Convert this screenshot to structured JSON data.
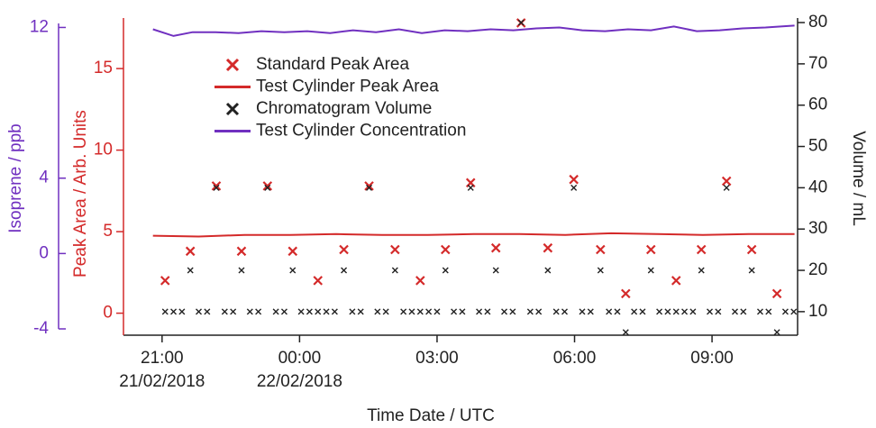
{
  "chart_data": {
    "type": "line",
    "xlabel": "Time Date / UTC",
    "ylabel": "Peak Area / Arb. Units",
    "y2label": "Volume / mL",
    "y3label": "Isoprene / ppb",
    "xlim": [
      "2018-02-21T20:13",
      "2018-02-22T10:52"
    ],
    "xticks": [
      {
        "value": "2018-02-21T21:00",
        "label": "21:00"
      },
      {
        "value": "2018-02-22T00:00",
        "label": "00:00"
      },
      {
        "value": "2018-02-22T03:00",
        "label": "03:00"
      },
      {
        "value": "2018-02-22T06:00",
        "label": "06:00"
      },
      {
        "value": "2018-02-22T09:00",
        "label": "09:00"
      }
    ],
    "x_date_labels": [
      {
        "value": "2018-02-21T21:00",
        "label": "21/02/2018"
      },
      {
        "value": "2018-02-22T00:00",
        "label": "22/02/2018"
      }
    ],
    "ylim": [
      -1.35,
      18.1
    ],
    "yticks": [
      0,
      5,
      10,
      15
    ],
    "ycolor": "#d42a2a",
    "y2lim": [
      4.3,
      81.1
    ],
    "y2ticks": [
      10,
      20,
      30,
      40,
      50,
      60,
      70,
      80
    ],
    "y2color": "#222222",
    "y3lim": [
      -4,
      12.5
    ],
    "y3ticks": [
      -4,
      0,
      4,
      12
    ],
    "y3color": "#7030c0",
    "series": [
      {
        "name": "Standard Peak Area",
        "style": "x",
        "axis": "y",
        "color": "#d42a2a",
        "x": [
          "2018-02-21T21:04",
          "2018-02-21T21:37",
          "2018-02-21T22:11",
          "2018-02-21T22:44",
          "2018-02-21T23:18",
          "2018-02-21T23:51",
          "2018-02-22T00:24",
          "2018-02-22T00:58",
          "2018-02-22T01:31",
          "2018-02-22T02:05",
          "2018-02-22T02:38",
          "2018-02-22T03:11",
          "2018-02-22T03:44",
          "2018-02-22T04:17",
          "2018-02-22T04:50",
          "2018-02-22T05:25",
          "2018-02-22T05:59",
          "2018-02-22T06:34",
          "2018-02-22T07:07",
          "2018-02-22T07:40",
          "2018-02-22T08:13",
          "2018-02-22T08:46",
          "2018-02-22T09:19",
          "2018-02-22T09:52",
          "2018-02-22T10:25"
        ],
        "values": [
          2.0,
          3.8,
          7.8,
          3.8,
          7.8,
          3.8,
          2.0,
          3.9,
          7.8,
          3.9,
          2.0,
          3.9,
          8.0,
          4.0,
          17.8,
          4.0,
          8.2,
          3.9,
          1.2,
          3.9,
          2.0,
          3.9,
          8.1,
          3.9,
          1.2
        ]
      },
      {
        "name": "Test Cylinder Peak Area",
        "style": "line",
        "axis": "y",
        "color": "#d42a2a",
        "x": [
          "2018-02-21T20:48",
          "2018-02-21T21:48",
          "2018-02-21T22:48",
          "2018-02-21T23:48",
          "2018-02-22T00:48",
          "2018-02-22T01:48",
          "2018-02-22T02:48",
          "2018-02-22T03:48",
          "2018-02-22T04:48",
          "2018-02-22T05:48",
          "2018-02-22T06:48",
          "2018-02-22T07:48",
          "2018-02-22T08:48",
          "2018-02-22T09:48",
          "2018-02-22T10:48"
        ],
        "values": [
          4.75,
          4.7,
          4.8,
          4.8,
          4.85,
          4.8,
          4.8,
          4.85,
          4.85,
          4.8,
          4.9,
          4.85,
          4.8,
          4.85,
          4.85
        ]
      },
      {
        "name": "Chromatogram Volume",
        "style": "x",
        "axis": "y2",
        "color": "#222222",
        "x": [
          "2018-02-21T21:04",
          "2018-02-21T21:15",
          "2018-02-21T21:26",
          "2018-02-21T21:37",
          "2018-02-21T21:48",
          "2018-02-21T21:59",
          "2018-02-21T22:11",
          "2018-02-21T22:22",
          "2018-02-21T22:33",
          "2018-02-21T22:44",
          "2018-02-21T22:55",
          "2018-02-21T23:06",
          "2018-02-21T23:18",
          "2018-02-21T23:29",
          "2018-02-21T23:40",
          "2018-02-21T23:51",
          "2018-02-22T00:02",
          "2018-02-22T00:13",
          "2018-02-22T00:24",
          "2018-02-22T00:35",
          "2018-02-22T00:46",
          "2018-02-22T00:58",
          "2018-02-22T01:09",
          "2018-02-22T01:20",
          "2018-02-22T01:31",
          "2018-02-22T01:42",
          "2018-02-22T01:53",
          "2018-02-22T02:05",
          "2018-02-22T02:16",
          "2018-02-22T02:27",
          "2018-02-22T02:38",
          "2018-02-22T02:49",
          "2018-02-22T03:00",
          "2018-02-22T03:11",
          "2018-02-22T03:22",
          "2018-02-22T03:33",
          "2018-02-22T03:44",
          "2018-02-22T03:55",
          "2018-02-22T04:06",
          "2018-02-22T04:17",
          "2018-02-22T04:28",
          "2018-02-22T04:39",
          "2018-02-22T04:50",
          "2018-02-22T05:02",
          "2018-02-22T05:13",
          "2018-02-22T05:25",
          "2018-02-22T05:36",
          "2018-02-22T05:47",
          "2018-02-22T05:59",
          "2018-02-22T06:10",
          "2018-02-22T06:21",
          "2018-02-22T06:34",
          "2018-02-22T06:45",
          "2018-02-22T06:56",
          "2018-02-22T07:07",
          "2018-02-22T07:18",
          "2018-02-22T07:29",
          "2018-02-22T07:40",
          "2018-02-22T07:51",
          "2018-02-22T08:02",
          "2018-02-22T08:13",
          "2018-02-22T08:24",
          "2018-02-22T08:35",
          "2018-02-22T08:46",
          "2018-02-22T08:57",
          "2018-02-22T09:08",
          "2018-02-22T09:19",
          "2018-02-22T09:30",
          "2018-02-22T09:41",
          "2018-02-22T09:52",
          "2018-02-22T10:03",
          "2018-02-22T10:14",
          "2018-02-22T10:25",
          "2018-02-22T10:36",
          "2018-02-22T10:47"
        ],
        "values": [
          10,
          10,
          10,
          20,
          10,
          10,
          40,
          10,
          10,
          20,
          10,
          10,
          40,
          10,
          10,
          20,
          10,
          10,
          10,
          10,
          10,
          20,
          10,
          10,
          40,
          10,
          10,
          20,
          10,
          10,
          10,
          10,
          10,
          20,
          10,
          10,
          40,
          10,
          10,
          20,
          10,
          10,
          80,
          10,
          10,
          20,
          10,
          10,
          40,
          10,
          10,
          20,
          10,
          10,
          5,
          10,
          10,
          20,
          10,
          10,
          10,
          10,
          10,
          20,
          10,
          10,
          40,
          10,
          10,
          20,
          10,
          10,
          5,
          10,
          10
        ]
      },
      {
        "name": "Test Cylinder Concentration",
        "style": "line",
        "axis": "y3",
        "color": "#7030c0",
        "x": [
          "2018-02-21T20:48",
          "2018-02-21T21:15",
          "2018-02-21T21:40",
          "2018-02-21T22:10",
          "2018-02-21T22:40",
          "2018-02-21T23:10",
          "2018-02-21T23:40",
          "2018-02-22T00:10",
          "2018-02-22T00:40",
          "2018-02-22T01:10",
          "2018-02-22T01:40",
          "2018-02-22T02:10",
          "2018-02-22T02:40",
          "2018-02-22T03:10",
          "2018-02-22T03:40",
          "2018-02-22T04:10",
          "2018-02-22T04:40",
          "2018-02-22T05:10",
          "2018-02-22T05:40",
          "2018-02-22T06:10",
          "2018-02-22T06:40",
          "2018-02-22T07:10",
          "2018-02-22T07:40",
          "2018-02-22T08:10",
          "2018-02-22T08:40",
          "2018-02-22T09:10",
          "2018-02-22T09:40",
          "2018-02-22T10:10",
          "2018-02-22T10:48"
        ],
        "values": [
          11.9,
          11.55,
          11.75,
          11.75,
          11.7,
          11.8,
          11.75,
          11.8,
          11.7,
          11.85,
          11.75,
          11.9,
          11.7,
          11.85,
          11.8,
          11.9,
          11.85,
          11.95,
          12.0,
          11.85,
          11.8,
          11.9,
          11.85,
          12.05,
          11.8,
          11.85,
          11.95,
          12.0,
          12.1
        ]
      }
    ]
  }
}
